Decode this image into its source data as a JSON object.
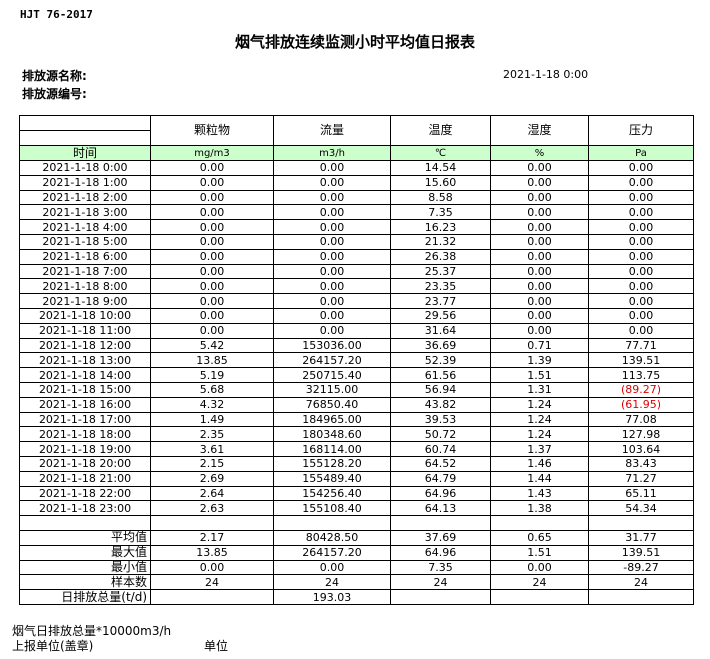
{
  "standard": "HJT  76-2017",
  "title": "烟气排放连续监测小时平均值日报表",
  "source_name_label": "排放源名称:",
  "source_code_label": "排放源编号:",
  "report_date": "2021-1-18 0:00",
  "columns": [
    "颗粒物",
    "流量",
    "温度",
    "湿度",
    "压力"
  ],
  "time_label": "时间",
  "units": [
    "mg/m3",
    "m3/h",
    "℃",
    "%",
    "Pa"
  ],
  "rows": [
    [
      "2021-1-18 0:00",
      "0.00",
      "0.00",
      "14.54",
      "0.00",
      "0.00"
    ],
    [
      "2021-1-18 1:00",
      "0.00",
      "0.00",
      "15.60",
      "0.00",
      "0.00"
    ],
    [
      "2021-1-18 2:00",
      "0.00",
      "0.00",
      "8.58",
      "0.00",
      "0.00"
    ],
    [
      "2021-1-18 3:00",
      "0.00",
      "0.00",
      "7.35",
      "0.00",
      "0.00"
    ],
    [
      "2021-1-18 4:00",
      "0.00",
      "0.00",
      "16.23",
      "0.00",
      "0.00"
    ],
    [
      "2021-1-18 5:00",
      "0.00",
      "0.00",
      "21.32",
      "0.00",
      "0.00"
    ],
    [
      "2021-1-18 6:00",
      "0.00",
      "0.00",
      "26.38",
      "0.00",
      "0.00"
    ],
    [
      "2021-1-18 7:00",
      "0.00",
      "0.00",
      "25.37",
      "0.00",
      "0.00"
    ],
    [
      "2021-1-18 8:00",
      "0.00",
      "0.00",
      "23.35",
      "0.00",
      "0.00"
    ],
    [
      "2021-1-18 9:00",
      "0.00",
      "0.00",
      "23.77",
      "0.00",
      "0.00"
    ],
    [
      "2021-1-18 10:00",
      "0.00",
      "0.00",
      "29.56",
      "0.00",
      "0.00"
    ],
    [
      "2021-1-18 11:00",
      "0.00",
      "0.00",
      "31.64",
      "0.00",
      "0.00"
    ],
    [
      "2021-1-18 12:00",
      "5.42",
      "153036.00",
      "36.69",
      "0.71",
      "77.71"
    ],
    [
      "2021-1-18 13:00",
      "13.85",
      "264157.20",
      "52.39",
      "1.39",
      "139.51"
    ],
    [
      "2021-1-18 14:00",
      "5.19",
      "250715.40",
      "61.56",
      "1.51",
      "113.75"
    ],
    [
      "2021-1-18 15:00",
      "5.68",
      "32115.00",
      "56.94",
      "1.31",
      "(89.27)"
    ],
    [
      "2021-1-18 16:00",
      "4.32",
      "76850.40",
      "43.82",
      "1.24",
      "(61.95)"
    ],
    [
      "2021-1-18 17:00",
      "1.49",
      "184965.00",
      "39.53",
      "1.24",
      "77.08"
    ],
    [
      "2021-1-18 18:00",
      "2.35",
      "180348.60",
      "50.72",
      "1.24",
      "127.98"
    ],
    [
      "2021-1-18 19:00",
      "3.61",
      "168114.00",
      "60.74",
      "1.37",
      "103.64"
    ],
    [
      "2021-1-18 20:00",
      "2.15",
      "155128.20",
      "64.52",
      "1.46",
      "83.43"
    ],
    [
      "2021-1-18 21:00",
      "2.69",
      "155489.40",
      "64.79",
      "1.44",
      "71.27"
    ],
    [
      "2021-1-18 22:00",
      "2.64",
      "154256.40",
      "64.96",
      "1.43",
      "65.11"
    ],
    [
      "2021-1-18 23:00",
      "2.63",
      "155108.40",
      "64.13",
      "1.38",
      "54.34"
    ]
  ],
  "negative_color": "#e00000",
  "stats": [
    [
      "平均值",
      "2.17",
      "80428.50",
      "37.69",
      "0.65",
      "31.77"
    ],
    [
      "最大值",
      "13.85",
      "264157.20",
      "64.96",
      "1.51",
      "139.51"
    ],
    [
      "最小值",
      "0.00",
      "0.00",
      "7.35",
      "0.00",
      "-89.27"
    ],
    [
      "样本数",
      "24",
      "24",
      "24",
      "24",
      "24"
    ],
    [
      "日排放总量(t/d)",
      "",
      "193.03",
      "",
      "",
      ""
    ]
  ],
  "footer": {
    "note": "烟气日排放总量*10000m3/h",
    "reporter": "上报单位(盖章)",
    "unit": "单位"
  }
}
